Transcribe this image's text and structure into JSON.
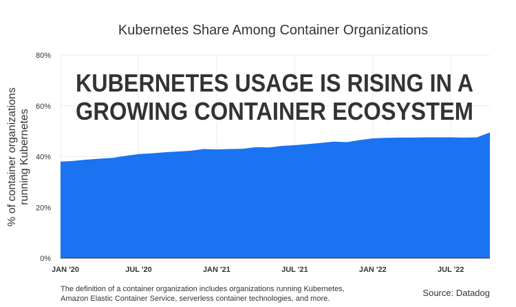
{
  "chart_data": {
    "type": "area",
    "title": "Kubernetes Share Among Container Organizations",
    "annotation": [
      "KUBERNETES USAGE IS RISING IN A",
      "GROWING CONTAINER ECOSYSTEM"
    ],
    "y_label": [
      "% of container organizations",
      "running Kubernetes"
    ],
    "categories": [
      "JAN '20",
      null,
      null,
      null,
      null,
      null,
      "JUL '20",
      null,
      null,
      null,
      null,
      null,
      "JAN '21",
      null,
      null,
      null,
      null,
      null,
      "JUL '21",
      null,
      null,
      null,
      null,
      null,
      "JAN '22",
      null,
      null,
      null,
      null,
      null,
      "JUL '22",
      null,
      null,
      null
    ],
    "values": [
      38,
      38.3,
      38.8,
      39.2,
      39.5,
      40.3,
      41,
      41.3,
      41.7,
      42,
      42.3,
      43,
      42.8,
      43,
      43.1,
      43.7,
      43.6,
      44.2,
      44.5,
      44.9,
      45.4,
      45.9,
      45.7,
      46.5,
      47.2,
      47.4,
      47.5,
      47.5,
      47.6,
      47.6,
      47.6,
      47.5,
      47.6,
      49.5
    ],
    "color": "#1a73f0",
    "ylim": [
      0,
      80
    ],
    "yticks": [
      {
        "value": 0,
        "label": "0%"
      },
      {
        "value": 20,
        "label": "20%"
      },
      {
        "value": 40,
        "label": "40%"
      },
      {
        "value": 60,
        "label": "60%"
      },
      {
        "value": 80,
        "label": "80%"
      }
    ],
    "grid": true,
    "footnote": [
      "The definition of a container organization includes organizations running Kubernetes,",
      "Amazon Elastic Container Service, serverless container technologies, and more."
    ],
    "source": "Source: Datadog"
  }
}
